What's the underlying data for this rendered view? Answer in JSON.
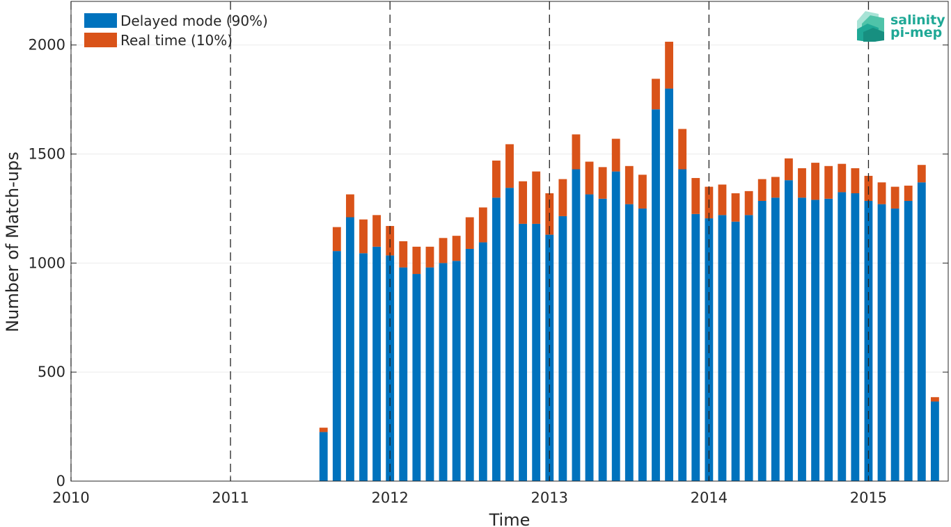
{
  "colors": {
    "delayed": "#0072BD",
    "realtime": "#D95319",
    "axis": "#262626",
    "grid": "#ebebeb",
    "logo": "#1fa896"
  },
  "logo": {
    "line1": "salinity",
    "line2": "pi-mep"
  },
  "chart_data": {
    "type": "bar",
    "stacked": true,
    "xlabel": "Time",
    "ylabel": "Number of Match-ups",
    "xlim": [
      2010,
      2015.5
    ],
    "ylim": [
      0,
      2200
    ],
    "x_ticks": [
      2010,
      2011,
      2012,
      2013,
      2014,
      2015
    ],
    "x_tick_labels": [
      "2010",
      "2011",
      "2012",
      "2013",
      "2014",
      "2015"
    ],
    "y_ticks": [
      0,
      500,
      1000,
      1500,
      2000
    ],
    "y_tick_labels": [
      "0",
      "500",
      "1000",
      "1500",
      "2000"
    ],
    "grid": true,
    "year_markers": [
      2010,
      2011,
      2012,
      2013,
      2014,
      2015
    ],
    "legend_position": "top-left",
    "categories": [
      "2011-08",
      "2011-09",
      "2011-10",
      "2011-11",
      "2011-12",
      "2012-01",
      "2012-02",
      "2012-03",
      "2012-04",
      "2012-05",
      "2012-06",
      "2012-07",
      "2012-08",
      "2012-09",
      "2012-10",
      "2012-11",
      "2012-12",
      "2013-01",
      "2013-02",
      "2013-03",
      "2013-04",
      "2013-05",
      "2013-06",
      "2013-07",
      "2013-08",
      "2013-09",
      "2013-10",
      "2013-11",
      "2013-12",
      "2014-01",
      "2014-02",
      "2014-03",
      "2014-04",
      "2014-05",
      "2014-06",
      "2014-07",
      "2014-08",
      "2014-09",
      "2014-10",
      "2014-11",
      "2014-12",
      "2015-01",
      "2015-02",
      "2015-03",
      "2015-04",
      "2015-05",
      "2015-06"
    ],
    "series": [
      {
        "name": "Delayed mode (90%)",
        "color": "#0072BD",
        "values": [
          225,
          1055,
          1210,
          1045,
          1075,
          1035,
          980,
          950,
          980,
          1000,
          1010,
          1065,
          1095,
          1300,
          1345,
          1180,
          1180,
          1130,
          1215,
          1430,
          1315,
          1295,
          1420,
          1270,
          1250,
          1705,
          1800,
          1430,
          1225,
          1205,
          1220,
          1190,
          1220,
          1285,
          1300,
          1380,
          1300,
          1290,
          1295,
          1325,
          1320,
          1285,
          1270,
          1250,
          1285,
          1370,
          365
        ]
      },
      {
        "name": "Real time (10%)",
        "color": "#D95319",
        "values": [
          20,
          110,
          105,
          155,
          145,
          135,
          120,
          125,
          95,
          115,
          115,
          145,
          160,
          170,
          200,
          195,
          240,
          190,
          170,
          160,
          150,
          145,
          150,
          175,
          155,
          140,
          215,
          185,
          165,
          145,
          140,
          130,
          110,
          100,
          95,
          100,
          135,
          170,
          150,
          130,
          115,
          115,
          100,
          100,
          70,
          80,
          20
        ]
      }
    ]
  }
}
